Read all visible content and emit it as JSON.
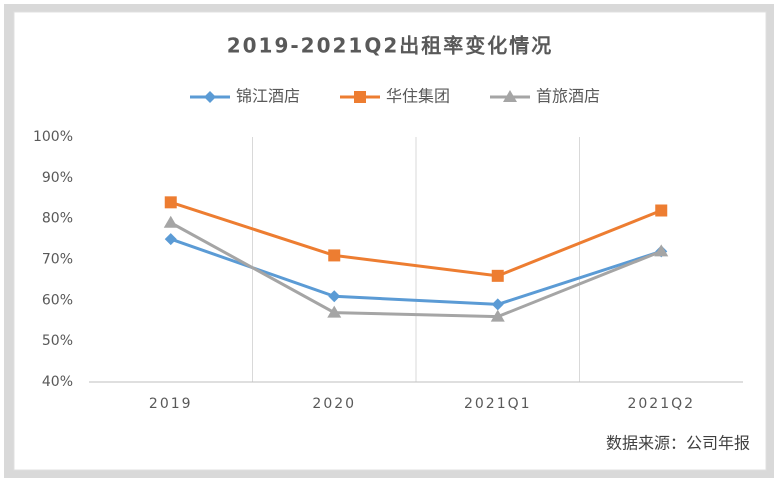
{
  "chart_data": {
    "type": "line",
    "title": "2019-2021Q2出租率变化情况",
    "categories": [
      "2019",
      "2020",
      "2021Q1",
      "2021Q2"
    ],
    "series": [
      {
        "name": "锦江酒店",
        "color": "#5b9bd5",
        "marker": "diamond",
        "values": [
          75,
          61,
          59,
          72
        ]
      },
      {
        "name": "华住集团",
        "color": "#ed7d31",
        "marker": "square",
        "values": [
          84,
          71,
          66,
          82
        ]
      },
      {
        "name": "首旅酒店",
        "color": "#a5a5a5",
        "marker": "triangle",
        "values": [
          79,
          57,
          56,
          72
        ]
      }
    ],
    "ylim": [
      40,
      100
    ],
    "yticks": [
      {
        "value": 40,
        "label": "40%"
      },
      {
        "value": 50,
        "label": "50%"
      },
      {
        "value": 60,
        "label": "60%"
      },
      {
        "value": 70,
        "label": "70%"
      },
      {
        "value": 80,
        "label": "80%"
      },
      {
        "value": 90,
        "label": "90%"
      },
      {
        "value": 100,
        "label": "100%"
      }
    ],
    "legend": "top",
    "source": "数据来源：公司年报"
  }
}
